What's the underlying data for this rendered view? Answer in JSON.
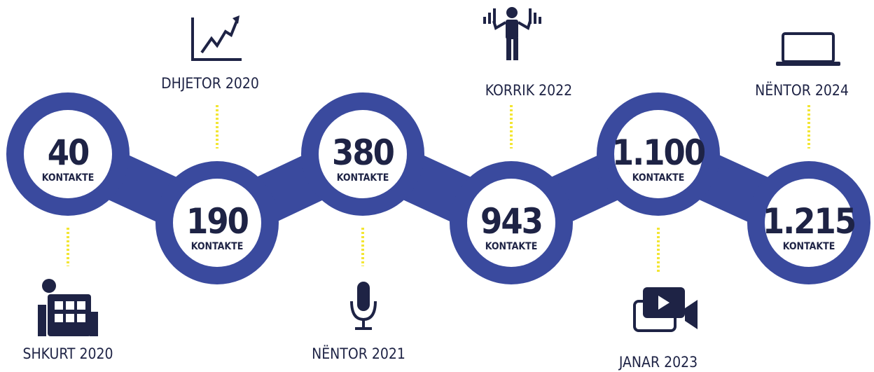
{
  "milestones": [
    {
      "value": "40",
      "unit": "KONTAKTE",
      "date": "SHKURT 2020"
    },
    {
      "value": "190",
      "unit": "KONTAKTE",
      "date": "DHJETOR 2020"
    },
    {
      "value": "380",
      "unit": "KONTAKTE",
      "date": "NËNTOR 2021"
    },
    {
      "value": "943",
      "unit": "KONTAKTE",
      "date": "KORRIK 2022"
    },
    {
      "value": "1.100",
      "unit": "KONTAKTE",
      "date": "JANAR 2023"
    },
    {
      "value": "1.215",
      "unit": "KONTAKTE",
      "date": "NËNTOR 2024"
    }
  ]
}
